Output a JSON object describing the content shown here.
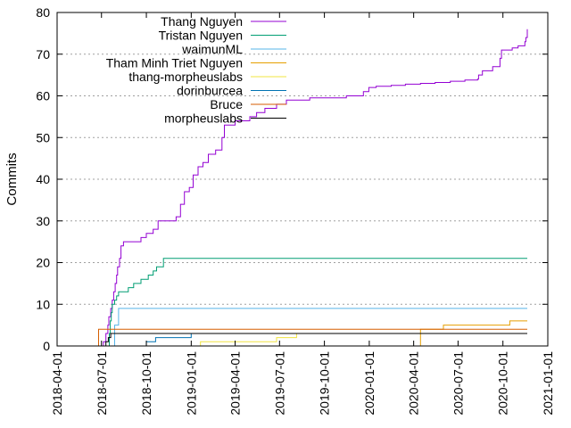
{
  "chart_data": {
    "type": "line",
    "ylabel": "Commits",
    "xlim": [
      "2018-04-01",
      "2021-01-01"
    ],
    "ylim": [
      0,
      80
    ],
    "x_ticks": [
      "2018-04-01",
      "2018-07-01",
      "2018-10-01",
      "2019-01-01",
      "2019-04-01",
      "2019-07-01",
      "2019-10-01",
      "2020-01-01",
      "2020-04-01",
      "2020-07-01",
      "2020-10-01",
      "2021-01-01"
    ],
    "y_ticks": [
      0,
      10,
      20,
      30,
      40,
      50,
      60,
      70,
      80
    ],
    "grid": true,
    "legend_position": "top-left",
    "series": [
      {
        "name": "Thang Nguyen",
        "color": "#9400d3",
        "points": [
          [
            "2018-06-25",
            0
          ],
          [
            "2018-07-05",
            1
          ],
          [
            "2018-07-10",
            3
          ],
          [
            "2018-07-14",
            5
          ],
          [
            "2018-07-16",
            7
          ],
          [
            "2018-07-20",
            9
          ],
          [
            "2018-07-23",
            11
          ],
          [
            "2018-07-26",
            13
          ],
          [
            "2018-07-29",
            15
          ],
          [
            "2018-08-01",
            17
          ],
          [
            "2018-08-03",
            19
          ],
          [
            "2018-08-07",
            21
          ],
          [
            "2018-08-10",
            24
          ],
          [
            "2018-08-15",
            25
          ],
          [
            "2018-09-10",
            25
          ],
          [
            "2018-09-20",
            26
          ],
          [
            "2018-10-01",
            27
          ],
          [
            "2018-10-15",
            28
          ],
          [
            "2018-10-25",
            30
          ],
          [
            "2018-11-20",
            30
          ],
          [
            "2018-12-01",
            31
          ],
          [
            "2018-12-10",
            34
          ],
          [
            "2018-12-18",
            37
          ],
          [
            "2018-12-28",
            38
          ],
          [
            "2019-01-05",
            41
          ],
          [
            "2019-01-15",
            43
          ],
          [
            "2019-01-25",
            44
          ],
          [
            "2019-02-05",
            46
          ],
          [
            "2019-02-20",
            47
          ],
          [
            "2019-03-05",
            50
          ],
          [
            "2019-03-10",
            53
          ],
          [
            "2019-04-01",
            54
          ],
          [
            "2019-05-01",
            55
          ],
          [
            "2019-05-15",
            56
          ],
          [
            "2019-06-01",
            57
          ],
          [
            "2019-06-25",
            58
          ],
          [
            "2019-07-15",
            59
          ],
          [
            "2019-09-01",
            59.5
          ],
          [
            "2019-11-15",
            60
          ],
          [
            "2019-12-20",
            61
          ],
          [
            "2019-12-31",
            62
          ],
          [
            "2020-01-15",
            62.3
          ],
          [
            "2020-02-15",
            62.5
          ],
          [
            "2020-03-15",
            62.8
          ],
          [
            "2020-04-15",
            63
          ],
          [
            "2020-05-15",
            63.2
          ],
          [
            "2020-06-15",
            63.5
          ],
          [
            "2020-07-15",
            63.8
          ],
          [
            "2020-08-10",
            64
          ],
          [
            "2020-08-12",
            65
          ],
          [
            "2020-08-20",
            66
          ],
          [
            "2020-09-10",
            67
          ],
          [
            "2020-09-25",
            69
          ],
          [
            "2020-09-28",
            71
          ],
          [
            "2020-10-20",
            71.5
          ],
          [
            "2020-11-01",
            72
          ],
          [
            "2020-11-15",
            73
          ],
          [
            "2020-11-17",
            74
          ],
          [
            "2020-11-20",
            76
          ]
        ]
      },
      {
        "name": "Tristan Nguyen",
        "color": "#009e73",
        "points": [
          [
            "2018-07-14",
            0
          ],
          [
            "2018-07-17",
            3
          ],
          [
            "2018-07-19",
            6
          ],
          [
            "2018-07-21",
            8
          ],
          [
            "2018-07-23",
            10
          ],
          [
            "2018-07-28",
            11
          ],
          [
            "2018-08-01",
            12
          ],
          [
            "2018-08-05",
            13
          ],
          [
            "2018-08-25",
            14
          ],
          [
            "2018-09-05",
            15
          ],
          [
            "2018-09-20",
            16
          ],
          [
            "2018-10-05",
            17
          ],
          [
            "2018-10-15",
            18
          ],
          [
            "2018-10-22",
            19
          ],
          [
            "2018-11-05",
            21
          ],
          [
            "2020-11-20",
            21
          ]
        ]
      },
      {
        "name": "waimunML",
        "color": "#56b4e9",
        "points": [
          [
            "2018-07-20",
            0
          ],
          [
            "2018-07-28",
            5
          ],
          [
            "2018-08-05",
            9
          ],
          [
            "2020-11-20",
            9
          ]
        ]
      },
      {
        "name": "Tham Minh Triet Nguyen",
        "color": "#e69f00",
        "points": [
          [
            "2018-04-01",
            0
          ],
          [
            "2020-04-15",
            4
          ],
          [
            "2020-05-20",
            4
          ],
          [
            "2020-06-01",
            5
          ],
          [
            "2020-10-01",
            5
          ],
          [
            "2020-10-15",
            6
          ],
          [
            "2020-11-20",
            6
          ]
        ]
      },
      {
        "name": "thang-morpheuslabs",
        "color": "#f0e442",
        "points": [
          [
            "2019-01-15",
            0
          ],
          [
            "2019-01-20",
            1
          ],
          [
            "2019-06-20",
            1
          ],
          [
            "2019-06-25",
            2
          ],
          [
            "2019-08-01",
            2
          ],
          [
            "2019-08-05",
            3
          ],
          [
            "2020-11-20",
            3
          ]
        ]
      },
      {
        "name": "dorinburcea",
        "color": "#0072b2",
        "points": [
          [
            "2018-09-28",
            0
          ],
          [
            "2018-10-01",
            1
          ],
          [
            "2018-10-20",
            2
          ],
          [
            "2018-12-05",
            2
          ],
          [
            "2019-01-01",
            3
          ],
          [
            "2020-11-20",
            3
          ]
        ]
      },
      {
        "name": "Bruce",
        "color": "#d55e00",
        "points": [
          [
            "2018-06-25",
            0
          ],
          [
            "2018-06-25",
            4
          ],
          [
            "2020-11-20",
            4
          ]
        ]
      },
      {
        "name": "morpheuslabs",
        "color": "#000000",
        "points": [
          [
            "2018-06-28",
            0
          ],
          [
            "2018-07-10",
            1
          ],
          [
            "2018-07-15",
            2
          ],
          [
            "2018-07-20",
            3
          ],
          [
            "2020-11-20",
            3
          ]
        ]
      }
    ]
  }
}
